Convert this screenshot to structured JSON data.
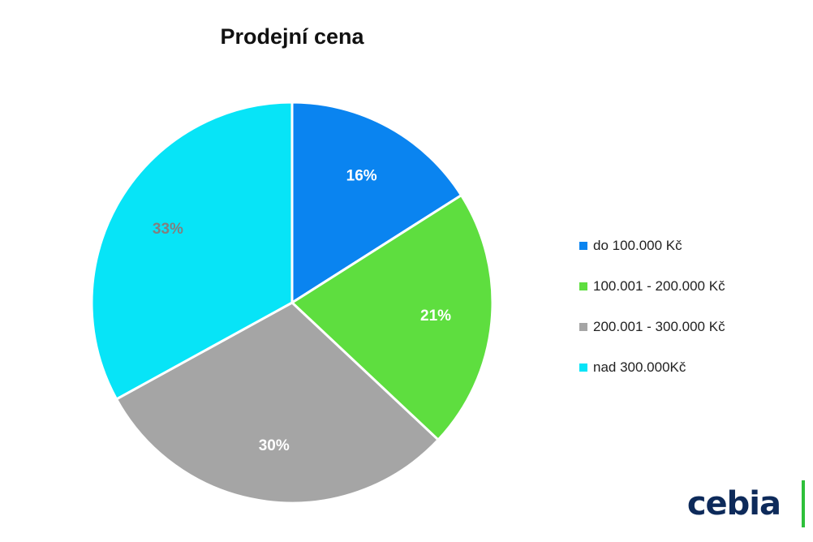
{
  "chart_data": {
    "type": "pie",
    "title": "Prodejní cena",
    "categories": [
      "do 100.000 Kč",
      "100.001 - 200.000 Kč",
      "200.001 - 300.000 Kč",
      "nad 300.000Kč"
    ],
    "values": [
      16,
      21,
      30,
      33
    ],
    "data_labels": [
      "16%",
      "21%",
      "30%",
      "33%"
    ],
    "colors": [
      "#0a84f0",
      "#5ede3f",
      "#a5a5a5",
      "#07e4f7"
    ],
    "label_colors": [
      "#ffffff",
      "#ffffff",
      "#ffffff",
      "#808080"
    ],
    "start_angle_deg": 0,
    "direction": "clockwise",
    "legend_position": "right"
  },
  "brand": {
    "logo_text": "cebia",
    "accent_color": "#2ec03a"
  }
}
